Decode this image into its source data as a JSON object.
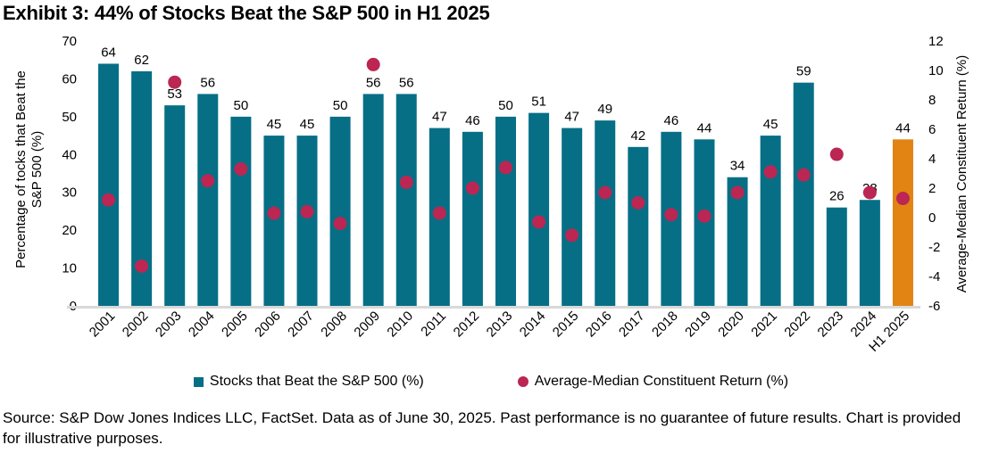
{
  "title": "Exhibit 3: 44% of Stocks Beat the S&P 500 in H1 2025",
  "chart_data": {
    "type": "bar",
    "categories": [
      "2001",
      "2002",
      "2003",
      "2004",
      "2005",
      "2006",
      "2007",
      "2008",
      "2009",
      "2010",
      "2011",
      "2012",
      "2013",
      "2014",
      "2015",
      "2016",
      "2017",
      "2018",
      "2019",
      "2020",
      "2021",
      "2022",
      "2023",
      "2024",
      "H1 2025"
    ],
    "series": [
      {
        "name": "Stocks that Beat the S&P 500 (%)",
        "type": "bar",
        "axis": "left",
        "values": [
          64,
          62,
          53,
          56,
          50,
          45,
          45,
          50,
          56,
          56,
          47,
          46,
          50,
          51,
          47,
          49,
          42,
          46,
          44,
          34,
          45,
          59,
          26,
          28,
          44
        ],
        "data_labels": [
          64,
          62,
          53,
          56,
          50,
          45,
          45,
          50,
          56,
          56,
          47,
          46,
          50,
          51,
          47,
          49,
          42,
          46,
          44,
          34,
          45,
          59,
          26,
          28,
          44
        ],
        "highlight_index": 24
      },
      {
        "name": "Average-Median Constituent Return (%)",
        "type": "scatter",
        "axis": "right",
        "values": [
          1.2,
          -3.3,
          9.2,
          2.5,
          3.3,
          0.3,
          0.4,
          -0.4,
          10.4,
          2.4,
          0.3,
          2.0,
          3.4,
          -0.3,
          -1.2,
          1.7,
          1.0,
          0.2,
          0.1,
          1.7,
          3.1,
          2.9,
          4.3,
          1.7,
          1.3
        ]
      }
    ],
    "axes": {
      "left": {
        "label_lines": [
          "Percentage of tocks that Beat the",
          "S&P 500 (%)"
        ],
        "min": 0,
        "max": 70,
        "ticks": [
          0,
          10,
          20,
          30,
          40,
          50,
          60,
          70
        ]
      },
      "right": {
        "label": "Average-Median Constituent Return (%)",
        "min": -6,
        "max": 12,
        "ticks": [
          -6,
          -4,
          -2,
          0,
          2,
          4,
          6,
          8,
          10,
          12
        ]
      }
    },
    "grid": false,
    "legend_position": "bottom"
  },
  "legend": {
    "items": [
      {
        "label": "Stocks that Beat the S&P 500 (%)",
        "marker": "square",
        "color": "#066F86"
      },
      {
        "label": "Average-Median Constituent Return (%)",
        "marker": "circle",
        "color": "#BB2653"
      }
    ]
  },
  "source_note": "Source: S&P Dow Jones Indices LLC, FactSet. Data as of June 30, 2025. Past performance is no guarantee of future results. Chart is provided for illustrative purposes.",
  "colors": {
    "bar": "#066F86",
    "highlight_bar": "#E18414",
    "dot": "#BB2653",
    "axis_line": "#D9D9D9",
    "text": "#000000"
  }
}
